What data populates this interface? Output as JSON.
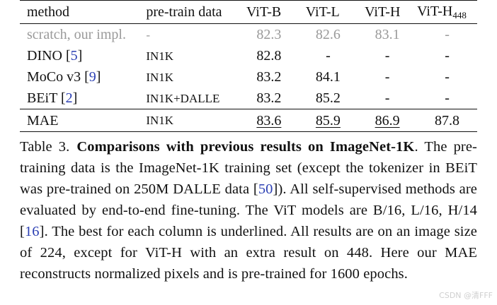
{
  "table": {
    "headers": {
      "method": "method",
      "data": "pre-train data",
      "b": "ViT-B",
      "l": "ViT-L",
      "h": "ViT-H",
      "h448_base": "ViT-H",
      "h448_sub": "448"
    },
    "rows": [
      {
        "method": "scratch, our impl.",
        "cite": "",
        "data": "-",
        "b": "82.3",
        "l": "82.6",
        "h": "83.1",
        "h448": "-"
      },
      {
        "method": "DINO ",
        "cite": "5",
        "data": "IN1K",
        "b": "82.8",
        "l": "-",
        "h": "-",
        "h448": "-"
      },
      {
        "method": "MoCo v3 ",
        "cite": "9",
        "data": "IN1K",
        "b": "83.2",
        "l": "84.1",
        "h": "-",
        "h448": "-"
      },
      {
        "method": "BEiT ",
        "cite": "2",
        "data": "IN1K+DALLE",
        "b": "83.2",
        "l": "85.2",
        "h": "-",
        "h448": "-"
      },
      {
        "method": "MAE",
        "cite": "",
        "data": "IN1K",
        "b": "83.6",
        "l": "85.9",
        "h": "86.9",
        "h448": "87.8"
      }
    ]
  },
  "caption": {
    "label": "Table 3.",
    "bold": "Comparisons with previous results on ImageNet-1K",
    "p1": ". The pre-training data is the ImageNet-1K training set (except the tokenizer in BEiT was pre-trained on 250M DALLE data [",
    "cite50": "50",
    "p2": "]). All self-supervised methods are evaluated by end-to-end fine-tuning. The ViT models are B/16, L/16, H/14 [",
    "cite16": "16",
    "p3": "]. The best for each column is underlined. All results are on an image size of 224, except for ViT-H with an extra result on 448. Here our MAE reconstructs normalized pixels and is pre-trained for 1600 epochs."
  },
  "watermark": "CSDN @清FFF"
}
